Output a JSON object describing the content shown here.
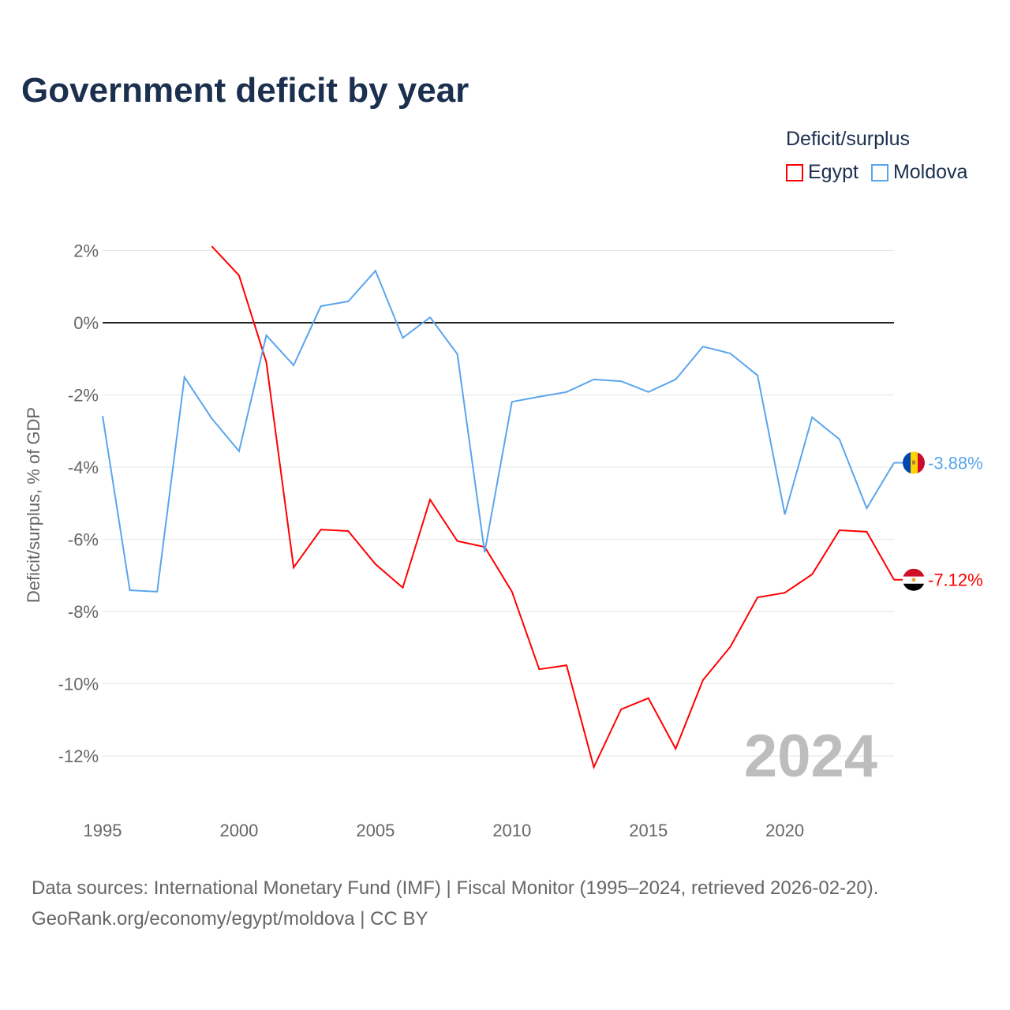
{
  "chart_data": {
    "type": "line",
    "title": "Government deficit by year",
    "ylabel": "Deficit/surplus, % of GDP",
    "xlabel": "",
    "legend_title": "Deficit/surplus",
    "legend_position": "top-right",
    "ylim": [
      -13,
      2.5
    ],
    "xlim": [
      1995,
      2024
    ],
    "yticks": [
      2,
      0,
      -2,
      -4,
      -6,
      -8,
      -10,
      -12
    ],
    "ytick_labels": [
      "2%",
      "0%",
      "-2%",
      "-4%",
      "-6%",
      "-8%",
      "-10%",
      "-12%"
    ],
    "xticks": [
      1995,
      2000,
      2005,
      2010,
      2015,
      2020
    ],
    "xtick_labels": [
      "1995",
      "2000",
      "2005",
      "2010",
      "2015",
      "2020"
    ],
    "year_watermark": "2024",
    "series": [
      {
        "name": "Egypt",
        "color": "#ff0000",
        "end_label": "-7.12%",
        "x": [
          1999,
          2000,
          2001,
          2002,
          2003,
          2004,
          2005,
          2006,
          2007,
          2008,
          2009,
          2010,
          2011,
          2012,
          2013,
          2014,
          2015,
          2016,
          2017,
          2018,
          2019,
          2020,
          2021,
          2022,
          2023,
          2024
        ],
        "values": [
          2.12,
          1.31,
          -1.09,
          -6.78,
          -5.73,
          -5.77,
          -6.69,
          -7.34,
          -4.9,
          -6.05,
          -6.21,
          -7.45,
          -9.6,
          -9.49,
          -12.31,
          -10.71,
          -10.4,
          -11.8,
          -9.9,
          -8.98,
          -7.61,
          -7.48,
          -6.97,
          -5.75,
          -5.79,
          -7.12
        ]
      },
      {
        "name": "Moldova",
        "color": "#5aa5ec",
        "end_label": "-3.88%",
        "x": [
          1995,
          1996,
          1997,
          1998,
          1999,
          2000,
          2001,
          2002,
          2003,
          2004,
          2005,
          2006,
          2007,
          2008,
          2009,
          2010,
          2011,
          2012,
          2013,
          2014,
          2015,
          2016,
          2017,
          2018,
          2019,
          2020,
          2021,
          2022,
          2023,
          2024
        ],
        "values": [
          -2.58,
          -7.41,
          -7.45,
          -1.51,
          -2.65,
          -3.56,
          -0.35,
          -1.18,
          0.46,
          0.59,
          1.44,
          -0.42,
          0.15,
          -0.87,
          -6.36,
          -2.19,
          -2.05,
          -1.92,
          -1.57,
          -1.62,
          -1.92,
          -1.57,
          -0.66,
          -0.85,
          -1.46,
          -5.31,
          -2.62,
          -3.23,
          -5.14,
          -3.88
        ]
      }
    ]
  },
  "footer": {
    "line1": "Data sources: International Monetary Fund (IMF) | Fiscal Monitor (1995–2024, retrieved 2026-02-20).",
    "line2": "GeoRank.org/economy/egypt/moldova | CC BY"
  }
}
